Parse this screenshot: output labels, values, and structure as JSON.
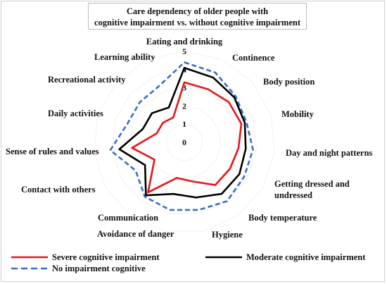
{
  "chart_data": {
    "type": "radar",
    "title_lines": [
      "Care dependency of older people with",
      "cognitive impairment vs. without cognitive impairment"
    ],
    "categories": [
      "Eating and drinking",
      "Continence",
      "Body position",
      "Mobility",
      "Day and night patterns",
      "Getting dressed and undressed",
      "Body temperature",
      "Hygiene",
      "Avoidance of danger",
      "Communication",
      "Contact with others",
      "Sense of rules and values",
      "Daily activities",
      "Recreational activity",
      "Learning ability"
    ],
    "ticks": [
      "0",
      "1",
      "2",
      "3",
      "4",
      "5"
    ],
    "rlim": [
      0,
      5
    ],
    "grid": true,
    "series": [
      {
        "name": "Severe cognitive impairment",
        "color": "#e8141b",
        "dash": "solid",
        "values": [
          3.3,
          3.2,
          3.3,
          3.3,
          3.0,
          2.9,
          2.9,
          2.2,
          2.0,
          3.4,
          1.9,
          2.9,
          1.6,
          1.6,
          1.5
        ]
      },
      {
        "name": "Moderate cognitive impairment",
        "color": "#000000",
        "dash": "solid",
        "values": [
          4.1,
          3.9,
          3.7,
          3.5,
          3.4,
          3.5,
          3.5,
          3.1,
          2.9,
          3.6,
          2.5,
          3.6,
          2.4,
          2.4,
          2.1
        ]
      },
      {
        "name": "No impairment cognitive",
        "color": "#3b6dc7",
        "dash": "dashed",
        "values": [
          4.4,
          4.2,
          3.8,
          3.6,
          3.8,
          3.8,
          4.0,
          3.8,
          3.8,
          3.7,
          3.1,
          4.1,
          3.3,
          3.3,
          3.4
        ]
      }
    ],
    "legend": [
      {
        "label": "Severe cognitive impairment",
        "color": "#e8141b",
        "dash": "solid"
      },
      {
        "label": "Moderate cognitive impairment",
        "color": "#000000",
        "dash": "solid"
      },
      {
        "label": "No impairment cognitive",
        "color": "#3b6dc7",
        "dash": "dashed"
      }
    ],
    "legend_position": "bottom"
  }
}
